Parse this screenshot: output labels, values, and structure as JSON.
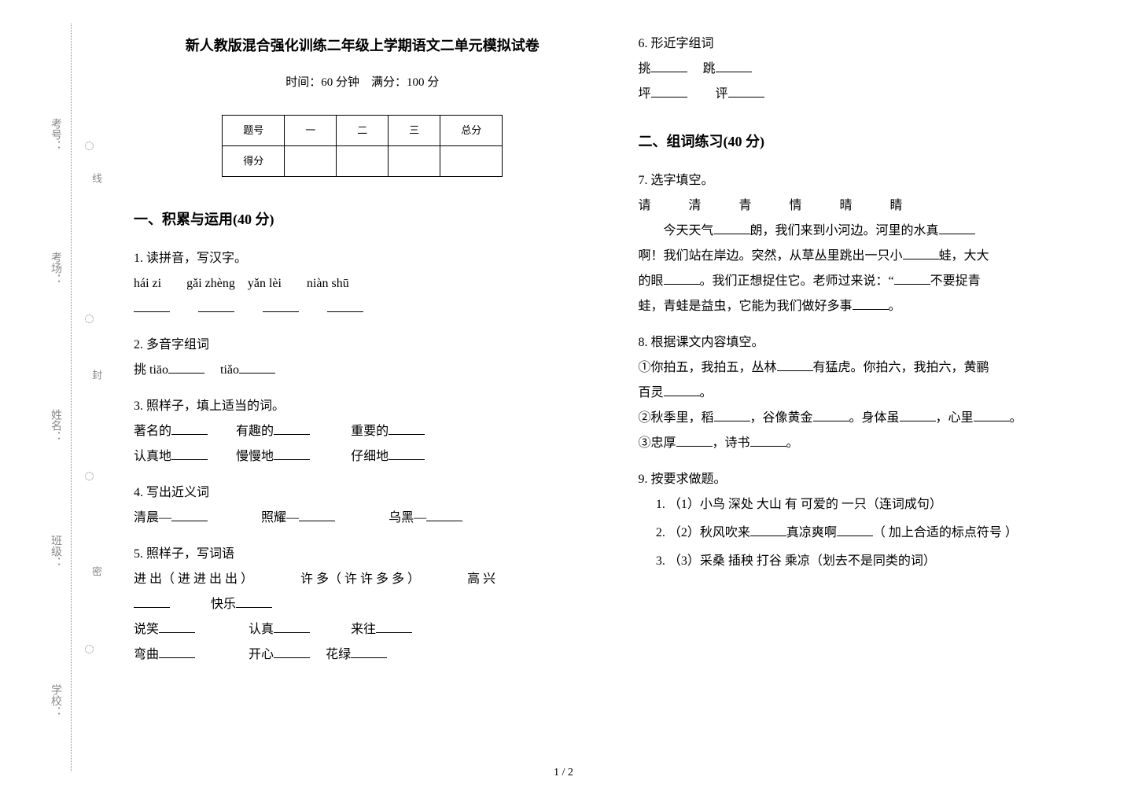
{
  "binding": {
    "labels": [
      "学校：",
      "班级：",
      "姓名：",
      "考场：",
      "考号："
    ],
    "seal_chars": [
      "密",
      "封",
      "线"
    ]
  },
  "header": {
    "title": "新人教版混合强化训练二年级上学期语文二单元模拟试卷",
    "subtitle": "时间：60 分钟　满分：100 分"
  },
  "score_table": {
    "row1": [
      "题号",
      "一",
      "二",
      "三",
      "总分"
    ],
    "row2_label": "得分"
  },
  "sections": {
    "s1": {
      "title": "一、积累与运用(40 分)"
    },
    "s2": {
      "title": "二、组词练习(40 分)"
    }
  },
  "q1": {
    "label": "1.  读拼音，写汉字。",
    "pinyin": "hái  zi　　gǎi zhèng　yǎn  lèi　　niàn shū"
  },
  "q2": {
    "label": "2.  多音字组词",
    "text_a": "挑 tiāo",
    "text_b": "　tiǎo"
  },
  "q3": {
    "label": "3.  照样子，填上适当的词。",
    "c1a": "著名的",
    "c1b": "有趣的",
    "c1c": "重要的",
    "c2a": "认真地",
    "c2b": "慢慢地",
    "c2c": "仔细地"
  },
  "q4": {
    "label": "4.  写出近义词",
    "a": "清晨—",
    "b": "照耀—",
    "c": "乌黑—"
  },
  "q5": {
    "label": "5.  照样子，写词语",
    "ex1": "进 出（ 进 进 出 出 ）",
    "ex2": "许 多（ 许 许 多 多 ）",
    "ex3": "高 兴",
    "ex4": "快乐",
    "r2a": "说笑",
    "r2b": "认真",
    "r2c": "来往",
    "r3a": "弯曲",
    "r3b": "开心",
    "r3c": "花绿"
  },
  "q6": {
    "label": "6.  形近字组词",
    "a": "挑",
    "b": "跳",
    "c": "坪",
    "d": "评"
  },
  "q7": {
    "label": "7.  选字填空。",
    "choices": "请　　　清　　　青　　　情　　　晴　　　睛",
    "t1a": "今天天气",
    "t1b": "朗，我们来到小河边。河里的水真",
    "t2a": "啊！我们站在岸边。突然，从草丛里跳出一只小",
    "t2b": "蛙，大大",
    "t3a": "的眼",
    "t3b": "。我们正想捉住它。老师过来说：“",
    "t3c": "不要捉青",
    "t4": "蛙，青蛙是益虫，它能为我们做好多事",
    "t4b": "。"
  },
  "q8": {
    "label": "8.  根据课文内容填空。",
    "l1a": "①你拍五，我拍五，丛林",
    "l1b": "有猛虎。你拍六，我拍六，黄鹂",
    "l2a": "百灵",
    "l2b": "。",
    "l3a": "②秋季里，稻",
    "l3b": "，谷像黄金",
    "l3c": "。身体虽",
    "l3d": "，心里",
    "l3e": "。",
    "l4a": "③忠厚",
    "l4b": "，诗书",
    "l4c": "。"
  },
  "q9": {
    "label": "9.  按要求做题。",
    "i1": "（1）小鸟 深处 大山 有 可爱的 一只（连词成句）",
    "i2a": "（2）秋风吹来",
    "i2b": "真凉爽啊",
    "i2c": "（ 加上合适的标点符号 ）",
    "i3": "（3）采桑 插秧 打谷 乘凉（划去不是同类的词）"
  },
  "footer": "1 / 2"
}
